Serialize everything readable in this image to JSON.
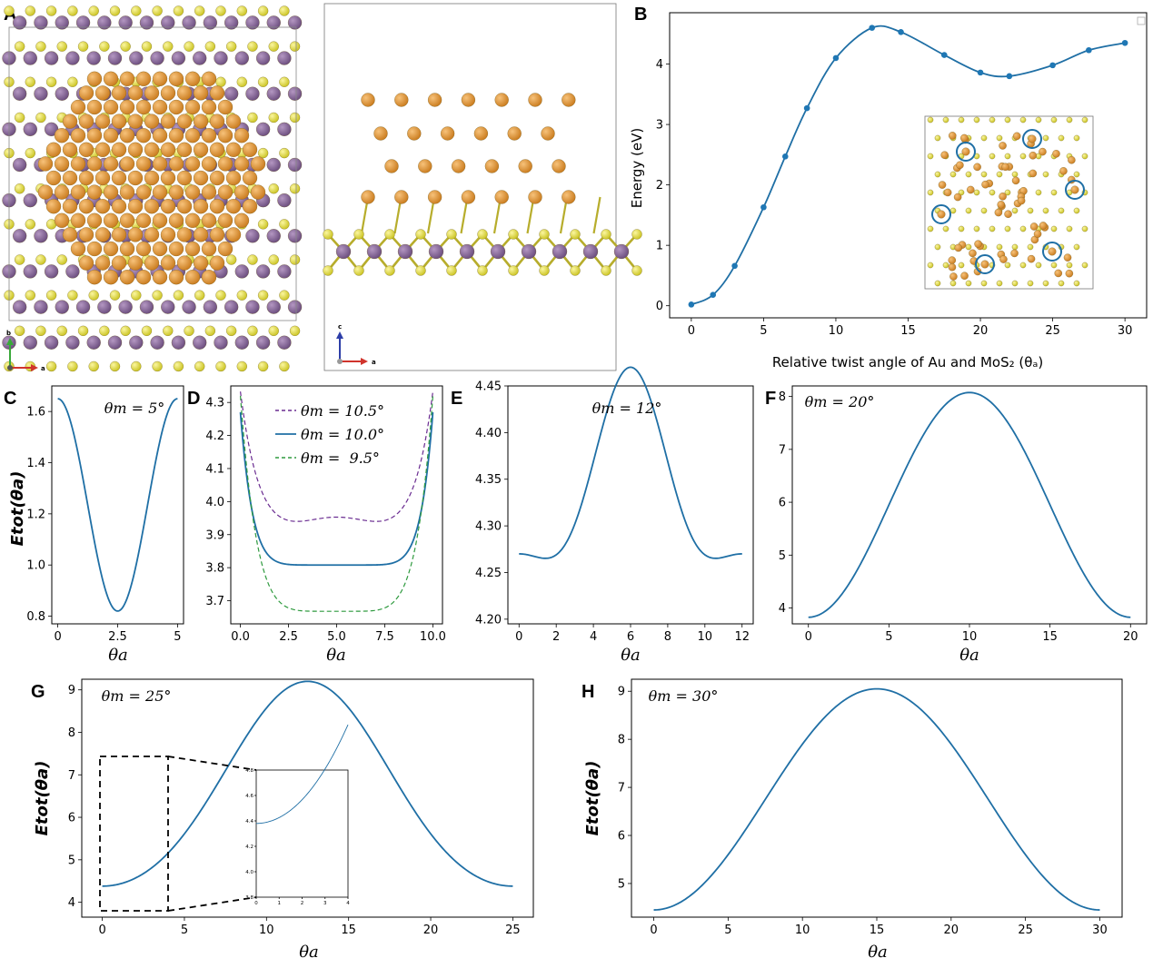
{
  "figure": {
    "panels": [
      {
        "id": "A",
        "letter": "A"
      },
      {
        "id": "B",
        "letter": "B"
      },
      {
        "id": "C",
        "letter": "C"
      },
      {
        "id": "D",
        "letter": "D"
      },
      {
        "id": "E",
        "letter": "E"
      },
      {
        "id": "F",
        "letter": "F"
      },
      {
        "id": "G",
        "letter": "G"
      },
      {
        "id": "H",
        "letter": "H"
      }
    ],
    "structure_A": {
      "top_axes": {
        "up": "b",
        "right": "a"
      },
      "side_axes": {
        "up": "c",
        "right": "a"
      }
    },
    "colors": {
      "line": "#1f6fa5",
      "marker": "#1f77b4",
      "purple_dash": "#6a2c91",
      "green_dash": "#2e9a3e",
      "gold_atom": "#e39a2e",
      "sulfur_atom": "#e8e23a",
      "mo_atom": "#8b6a9c"
    }
  },
  "chart_data": [
    {
      "panel": "B",
      "type": "line",
      "xlabel": "Relative twist angle of Au and MoS₂ (θₐ)",
      "ylabel": "Energy (eV)",
      "x": [
        0,
        1.5,
        3,
        5,
        6.5,
        8,
        10,
        12.5,
        14.5,
        17.5,
        20,
        22,
        25,
        27.5,
        30
      ],
      "y": [
        0.02,
        0.18,
        0.66,
        1.63,
        2.47,
        3.27,
        4.1,
        4.6,
        4.53,
        4.15,
        3.86,
        3.8,
        3.98,
        4.23,
        4.35
      ],
      "xlim": [
        -1.5,
        31.5
      ],
      "ylim": [
        -0.2,
        4.85
      ],
      "xticks": [
        "0",
        "5",
        "10",
        "15",
        "20",
        "25",
        "30"
      ],
      "yticks": [
        "0",
        "1",
        "2",
        "3",
        "4"
      ]
    },
    {
      "panel": "C",
      "type": "line",
      "annotation": "θm = 5°",
      "xlabel": "θa",
      "ylabel": "Etot(θa)",
      "xlim": [
        -0.25,
        5.25
      ],
      "ylim": [
        0.77,
        1.7
      ],
      "xticks": [
        "0",
        "2.5",
        "5"
      ],
      "yticks": [
        "0.8",
        "1.0",
        "1.2",
        "1.4",
        "1.6"
      ],
      "model": {
        "period": 5,
        "A": 0.415,
        "B": 0,
        "offset": 1.235
      }
    },
    {
      "panel": "D",
      "type": "line",
      "xlabel": "θa",
      "xlim": [
        -0.5,
        10.5
      ],
      "ylim": [
        3.63,
        4.35
      ],
      "xticks": [
        "0.0",
        "2.5",
        "5.0",
        "7.5",
        "10.0"
      ],
      "yticks": [
        "3.7",
        "3.8",
        "3.9",
        "4.0",
        "4.1",
        "4.2",
        "4.3"
      ],
      "series": [
        {
          "name": "θm = 10.5°",
          "style": "dashed",
          "color": "#6a2c91"
        },
        {
          "name": "θm = 10.0°",
          "style": "solid",
          "color": "#1f6fa5"
        },
        {
          "name": "θm =  9.5°",
          "style": "dashed",
          "color": "#2e9a3e"
        }
      ],
      "models": [
        {
          "period": 10,
          "base": 3.945,
          "top": 4.325,
          "n": 6,
          "wiggle": 0.008
        },
        {
          "period": 10,
          "base": 3.808,
          "top": 4.27,
          "n": 8,
          "wiggle": 0
        },
        {
          "period": 10,
          "base": 3.668,
          "top": 4.32,
          "n": 6,
          "wiggle": 0
        }
      ]
    },
    {
      "panel": "E",
      "type": "line",
      "annotation": "θm = 12°",
      "xlabel": "θa",
      "xlim": [
        -0.6,
        12.6
      ],
      "ylim": [
        4.195,
        4.45
      ],
      "xticks": [
        "0",
        "2",
        "4",
        "6",
        "8",
        "10",
        "12"
      ],
      "yticks": [
        "4.20",
        "4.25",
        "4.30",
        "4.35",
        "4.40",
        "4.45"
      ],
      "model": {
        "period": 12,
        "A": -0.1,
        "B": 0.034,
        "offset": 4.336
      }
    },
    {
      "panel": "F",
      "type": "line",
      "annotation": "θm = 20°",
      "xlabel": "θa",
      "xlim": [
        -1,
        21
      ],
      "ylim": [
        3.7,
        8.2
      ],
      "xticks": [
        "0",
        "5",
        "10",
        "15",
        "20"
      ],
      "yticks": [
        "4",
        "5",
        "6",
        "7",
        "8"
      ],
      "model": {
        "period": 20,
        "A": -2.125,
        "B": 0,
        "offset": 5.95
      }
    },
    {
      "panel": "G",
      "type": "line",
      "annotation": "θm = 25°",
      "xlabel": "θa",
      "ylabel": "Etot(θa)",
      "xlim": [
        -1.25,
        26.25
      ],
      "ylim": [
        3.65,
        9.25
      ],
      "xticks": [
        "0",
        "5",
        "10",
        "15",
        "20",
        "25"
      ],
      "yticks": [
        "4",
        "5",
        "6",
        "7",
        "8",
        "9"
      ],
      "model": {
        "period": 25,
        "A": -2.41,
        "B": 0.24,
        "offset": 6.55
      },
      "inset": {
        "xlim": [
          0,
          4
        ],
        "ylim": [
          3.8,
          4.8
        ],
        "xticks": [
          "0",
          "1",
          "2",
          "3",
          "4"
        ],
        "yticks": [
          "3.8",
          "4.0",
          "4.2",
          "4.4",
          "4.6",
          "4.8"
        ]
      }
    },
    {
      "panel": "H",
      "type": "line",
      "annotation": "θm = 30°",
      "xlabel": "θa",
      "ylabel": "Etot(θa)",
      "xlim": [
        -1.5,
        31.5
      ],
      "ylim": [
        4.3,
        9.25
      ],
      "xticks": [
        "0",
        "5",
        "10",
        "15",
        "20",
        "25",
        "30"
      ],
      "yticks": [
        "5",
        "6",
        "7",
        "8",
        "9"
      ],
      "model": {
        "period": 30,
        "A": -2.3,
        "B": 0,
        "offset": 6.75
      }
    }
  ]
}
